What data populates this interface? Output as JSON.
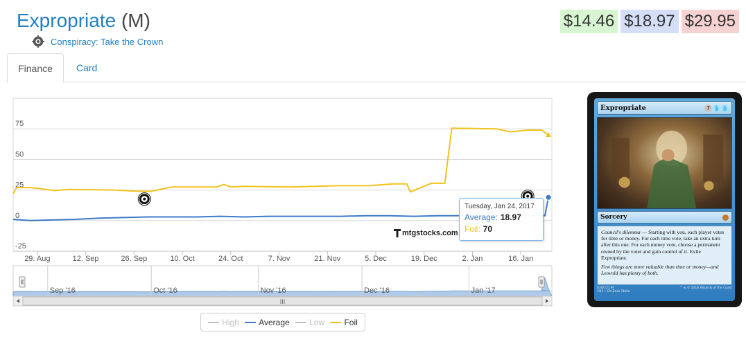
{
  "card": {
    "name": "Expropriate",
    "rarity": "(M)",
    "set_name": "Conspiracy: Take the Crown"
  },
  "prices": {
    "low": "$14.46",
    "avg": "$18.97",
    "high": "$29.95"
  },
  "tabs": [
    {
      "label": "Finance",
      "active": true
    },
    {
      "label": "Card",
      "active": false
    }
  ],
  "chart_data": {
    "type": "line",
    "y_ticks": [
      "75",
      "50",
      "25",
      "0",
      "-25"
    ],
    "ylim": [
      -25,
      100
    ],
    "x_ticks": [
      "29. Aug",
      "12. Sep",
      "26. Sep",
      "10. Oct",
      "24. Oct",
      "7. Nov",
      "21. Nov",
      "5. Dec",
      "19. Dec",
      "2. Jan",
      "16. Jan"
    ],
    "x_range": [
      "2016-08-22",
      "2017-01-25"
    ],
    "navigator_labels": [
      "Sep '16",
      "Oct '16",
      "Nov '16",
      "Dec '16",
      "Jan '17"
    ],
    "series": [
      {
        "name": "Average",
        "color": "#3c7ac7",
        "points": [
          [
            "2016-08-22",
            1
          ],
          [
            "2016-08-27",
            0
          ],
          [
            "2016-09-02",
            0.5
          ],
          [
            "2016-09-09",
            1
          ],
          [
            "2016-09-16",
            2
          ],
          [
            "2016-09-23",
            2.5
          ],
          [
            "2016-09-30",
            3
          ],
          [
            "2016-10-07",
            3
          ],
          [
            "2016-10-14",
            3
          ],
          [
            "2016-10-21",
            3.5
          ],
          [
            "2016-10-28",
            3
          ],
          [
            "2016-11-04",
            3.5
          ],
          [
            "2016-11-11",
            3.5
          ],
          [
            "2016-11-18",
            3.5
          ],
          [
            "2016-11-25",
            3.5
          ],
          [
            "2016-12-02",
            4
          ],
          [
            "2016-12-09",
            4
          ],
          [
            "2016-12-16",
            3.5
          ],
          [
            "2016-12-23",
            4
          ],
          [
            "2016-12-30",
            4
          ],
          [
            "2017-01-06",
            4
          ],
          [
            "2017-01-13",
            4
          ],
          [
            "2017-01-20",
            4
          ],
          [
            "2017-01-23",
            4
          ],
          [
            "2017-01-24",
            18.97
          ]
        ]
      },
      {
        "name": "Foil",
        "color": "#f2c31b",
        "points": [
          [
            "2016-08-22",
            22
          ],
          [
            "2016-08-23",
            27
          ],
          [
            "2016-08-27",
            27
          ],
          [
            "2016-08-30",
            26
          ],
          [
            "2016-09-03",
            24.5
          ],
          [
            "2016-09-07",
            25.5
          ],
          [
            "2016-09-20",
            25
          ],
          [
            "2016-09-27",
            24
          ],
          [
            "2016-10-01",
            24
          ],
          [
            "2016-10-07",
            27.5
          ],
          [
            "2016-10-13",
            27.5
          ],
          [
            "2016-10-20",
            27.5
          ],
          [
            "2016-10-22",
            29.5
          ],
          [
            "2016-10-24",
            27.5
          ],
          [
            "2016-10-28",
            28
          ],
          [
            "2016-11-10",
            27.5
          ],
          [
            "2016-11-24",
            28.5
          ],
          [
            "2016-12-03",
            28.5
          ],
          [
            "2016-12-10",
            30
          ],
          [
            "2016-12-14",
            30
          ],
          [
            "2016-12-15",
            23.5
          ],
          [
            "2016-12-21",
            30.5
          ],
          [
            "2016-12-25",
            30.5
          ],
          [
            "2016-12-27",
            75.5
          ],
          [
            "2017-01-09",
            75
          ],
          [
            "2017-01-13",
            72.5
          ],
          [
            "2017-01-18",
            74
          ],
          [
            "2017-01-22",
            74
          ],
          [
            "2017-01-24",
            70
          ]
        ]
      },
      {
        "name": "High",
        "color": "#c0c0c0",
        "visible": false
      },
      {
        "name": "Low",
        "color": "#c0c0c0",
        "visible": false
      }
    ],
    "tooltip": {
      "date": "Tuesday, Jan 24, 2017",
      "average_label": "Average:",
      "average_value": "18.97",
      "foil_label": "Foil:",
      "foil_value": "70"
    },
    "watermark": "mtgstocks.com",
    "scrollbar_grip": "III"
  },
  "legend": [
    {
      "label": "High",
      "active": false,
      "color": "#c0c0c0"
    },
    {
      "label": "Average",
      "active": true,
      "color": "#3c7ac7"
    },
    {
      "label": "Low",
      "active": false,
      "color": "#c0c0c0"
    },
    {
      "label": "Foil",
      "active": true,
      "color": "#f2c31b"
    }
  ],
  "card_image": {
    "name": "Expropriate",
    "cost": [
      "7",
      "U",
      "U"
    ],
    "type": "Sorcery",
    "rules_name": "Council's dilemma",
    "rules_text": " — Starting with you, each player votes for time or money. For each time vote, take an extra turn after this one. For each money vote, choose a permanent owned by the voter and gain control of it. Exile Expropriate.",
    "flavor": "Few things are more valuable than time or money—and Leovold has plenty of both.",
    "collector_info": "030/221 M",
    "set_line": "CN2 • EN",
    "artist": "Zack Stella",
    "copyright": "™ & © 2016 Wizards of the Coast"
  }
}
